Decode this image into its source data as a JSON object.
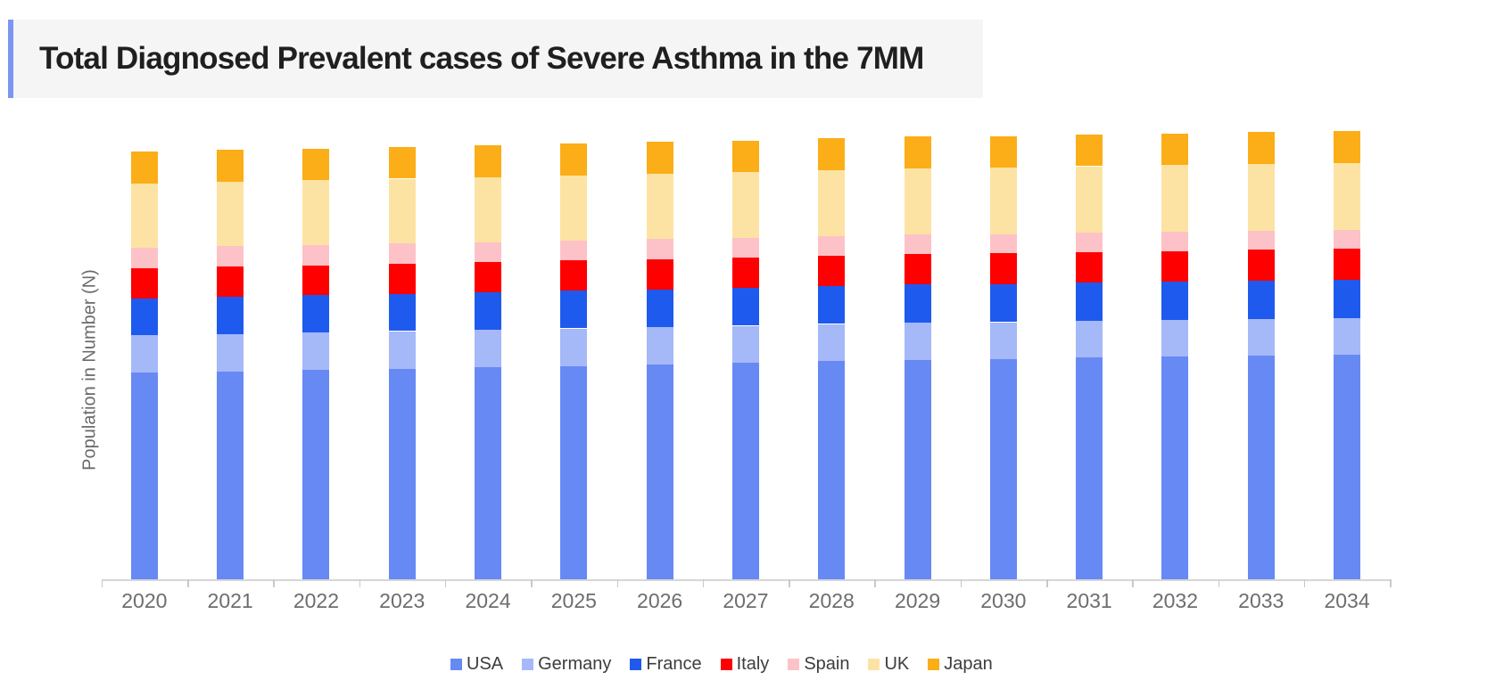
{
  "title": {
    "text": "Total Diagnosed Prevalent cases of Severe Asthma in the 7MM",
    "accent_color": "#7b96f2",
    "background_color": "#f5f5f6"
  },
  "y_axis": {
    "label": "Population in Number (N)",
    "numeric_tick_labels_visible": false
  },
  "x_axis": {
    "labels": [
      "2020",
      "2021",
      "2022",
      "2023",
      "2024",
      "2025",
      "2026",
      "2027",
      "2028",
      "2029",
      "2030",
      "2031",
      "2032",
      "2033",
      "2034"
    ]
  },
  "legend": {
    "position": "bottom",
    "items": [
      "USA",
      "Germany",
      "France",
      "Italy",
      "Spain",
      "UK",
      "Japan"
    ]
  },
  "chart_data": {
    "type": "bar",
    "stacked": true,
    "title": "Total Diagnosed Prevalent cases of Severe Asthma in the 7MM",
    "xlabel": "",
    "ylabel": "Population in Number (N)",
    "grid": false,
    "legend_position": "bottom",
    "value_units": "relative height units (y-axis shows no numeric tick labels; values estimated from pixel heights)",
    "categories": [
      "2020",
      "2021",
      "2022",
      "2023",
      "2024",
      "2025",
      "2026",
      "2027",
      "2028",
      "2029",
      "2030",
      "2031",
      "2032",
      "2033",
      "2034"
    ],
    "series": [
      {
        "name": "USA",
        "color": "#6789F4",
        "values": [
          232,
          233.5,
          235,
          236.5,
          238,
          239.5,
          241,
          243,
          245,
          246.5,
          247.5,
          249,
          250,
          251,
          252
        ]
      },
      {
        "name": "Germany",
        "color": "#A5B8F8",
        "values": [
          42,
          42,
          42,
          42,
          42,
          42,
          42,
          41.5,
          41.5,
          41.5,
          41,
          41,
          41,
          41,
          41
        ]
      },
      {
        "name": "France",
        "color": "#1F5AEE",
        "values": [
          41.3,
          41.5,
          41.6,
          41.8,
          42,
          42.1,
          42.3,
          42.4,
          42.6,
          42.7,
          42.9,
          43,
          43.1,
          43.2,
          43.3
        ]
      },
      {
        "name": "Italy",
        "color": "#FE0000",
        "values": [
          33.7,
          33.8,
          33.8,
          33.9,
          33.9,
          34,
          34,
          34.1,
          34.1,
          34.2,
          34.2,
          34.3,
          34.3,
          34.4,
          34.4
        ]
      },
      {
        "name": "Spain",
        "color": "#FDC2C7",
        "values": [
          23,
          22.9,
          22.8,
          22.6,
          22.5,
          22.4,
          22.3,
          22.1,
          22,
          21.9,
          21.7,
          21.6,
          21.5,
          21.4,
          21.3
        ]
      },
      {
        "name": "UK",
        "color": "#FDE3A3",
        "values": [
          72,
          72.2,
          72.5,
          72.7,
          73,
          73.2,
          73.4,
          73.7,
          73.9,
          74.1,
          74.4,
          74.6,
          74.8,
          75.1,
          75.3
        ]
      },
      {
        "name": "Japan",
        "color": "#FBAE17",
        "values": [
          35.7,
          35.7,
          35.7,
          35.7,
          35.7,
          35.7,
          35.7,
          35.7,
          35.7,
          35.7,
          35.7,
          35.7,
          35.7,
          36,
          36
        ]
      }
    ]
  }
}
